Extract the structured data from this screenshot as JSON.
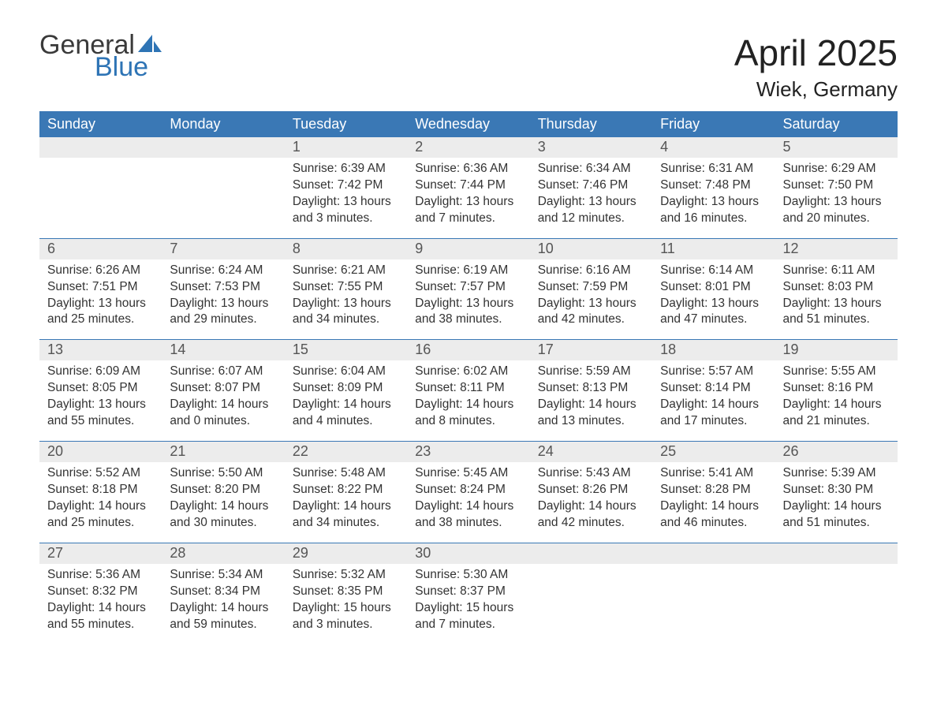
{
  "logo": {
    "word1": "General",
    "word2": "Blue",
    "word1_color": "#3a3a3a",
    "word2_color": "#2e74b5",
    "shape_color": "#2e74b5"
  },
  "title": "April 2025",
  "location": "Wiek, Germany",
  "colors": {
    "header_bg": "#3a78b5",
    "header_text": "#ffffff",
    "daynum_bg": "#ececec",
    "daynum_text": "#555555",
    "body_text": "#333333",
    "week_divider": "#3a78b5",
    "page_bg": "#ffffff"
  },
  "typography": {
    "title_fontsize": 46,
    "location_fontsize": 26,
    "header_fontsize": 18,
    "daynum_fontsize": 18,
    "body_fontsize": 15.5
  },
  "days_of_week": [
    "Sunday",
    "Monday",
    "Tuesday",
    "Wednesday",
    "Thursday",
    "Friday",
    "Saturday"
  ],
  "weeks": [
    [
      {
        "empty": true
      },
      {
        "empty": true
      },
      {
        "day": "1",
        "sunrise": "Sunrise: 6:39 AM",
        "sunset": "Sunset: 7:42 PM",
        "daylight1": "Daylight: 13 hours",
        "daylight2": "and 3 minutes."
      },
      {
        "day": "2",
        "sunrise": "Sunrise: 6:36 AM",
        "sunset": "Sunset: 7:44 PM",
        "daylight1": "Daylight: 13 hours",
        "daylight2": "and 7 minutes."
      },
      {
        "day": "3",
        "sunrise": "Sunrise: 6:34 AM",
        "sunset": "Sunset: 7:46 PM",
        "daylight1": "Daylight: 13 hours",
        "daylight2": "and 12 minutes."
      },
      {
        "day": "4",
        "sunrise": "Sunrise: 6:31 AM",
        "sunset": "Sunset: 7:48 PM",
        "daylight1": "Daylight: 13 hours",
        "daylight2": "and 16 minutes."
      },
      {
        "day": "5",
        "sunrise": "Sunrise: 6:29 AM",
        "sunset": "Sunset: 7:50 PM",
        "daylight1": "Daylight: 13 hours",
        "daylight2": "and 20 minutes."
      }
    ],
    [
      {
        "day": "6",
        "sunrise": "Sunrise: 6:26 AM",
        "sunset": "Sunset: 7:51 PM",
        "daylight1": "Daylight: 13 hours",
        "daylight2": "and 25 minutes."
      },
      {
        "day": "7",
        "sunrise": "Sunrise: 6:24 AM",
        "sunset": "Sunset: 7:53 PM",
        "daylight1": "Daylight: 13 hours",
        "daylight2": "and 29 minutes."
      },
      {
        "day": "8",
        "sunrise": "Sunrise: 6:21 AM",
        "sunset": "Sunset: 7:55 PM",
        "daylight1": "Daylight: 13 hours",
        "daylight2": "and 34 minutes."
      },
      {
        "day": "9",
        "sunrise": "Sunrise: 6:19 AM",
        "sunset": "Sunset: 7:57 PM",
        "daylight1": "Daylight: 13 hours",
        "daylight2": "and 38 minutes."
      },
      {
        "day": "10",
        "sunrise": "Sunrise: 6:16 AM",
        "sunset": "Sunset: 7:59 PM",
        "daylight1": "Daylight: 13 hours",
        "daylight2": "and 42 minutes."
      },
      {
        "day": "11",
        "sunrise": "Sunrise: 6:14 AM",
        "sunset": "Sunset: 8:01 PM",
        "daylight1": "Daylight: 13 hours",
        "daylight2": "and 47 minutes."
      },
      {
        "day": "12",
        "sunrise": "Sunrise: 6:11 AM",
        "sunset": "Sunset: 8:03 PM",
        "daylight1": "Daylight: 13 hours",
        "daylight2": "and 51 minutes."
      }
    ],
    [
      {
        "day": "13",
        "sunrise": "Sunrise: 6:09 AM",
        "sunset": "Sunset: 8:05 PM",
        "daylight1": "Daylight: 13 hours",
        "daylight2": "and 55 minutes."
      },
      {
        "day": "14",
        "sunrise": "Sunrise: 6:07 AM",
        "sunset": "Sunset: 8:07 PM",
        "daylight1": "Daylight: 14 hours",
        "daylight2": "and 0 minutes."
      },
      {
        "day": "15",
        "sunrise": "Sunrise: 6:04 AM",
        "sunset": "Sunset: 8:09 PM",
        "daylight1": "Daylight: 14 hours",
        "daylight2": "and 4 minutes."
      },
      {
        "day": "16",
        "sunrise": "Sunrise: 6:02 AM",
        "sunset": "Sunset: 8:11 PM",
        "daylight1": "Daylight: 14 hours",
        "daylight2": "and 8 minutes."
      },
      {
        "day": "17",
        "sunrise": "Sunrise: 5:59 AM",
        "sunset": "Sunset: 8:13 PM",
        "daylight1": "Daylight: 14 hours",
        "daylight2": "and 13 minutes."
      },
      {
        "day": "18",
        "sunrise": "Sunrise: 5:57 AM",
        "sunset": "Sunset: 8:14 PM",
        "daylight1": "Daylight: 14 hours",
        "daylight2": "and 17 minutes."
      },
      {
        "day": "19",
        "sunrise": "Sunrise: 5:55 AM",
        "sunset": "Sunset: 8:16 PM",
        "daylight1": "Daylight: 14 hours",
        "daylight2": "and 21 minutes."
      }
    ],
    [
      {
        "day": "20",
        "sunrise": "Sunrise: 5:52 AM",
        "sunset": "Sunset: 8:18 PM",
        "daylight1": "Daylight: 14 hours",
        "daylight2": "and 25 minutes."
      },
      {
        "day": "21",
        "sunrise": "Sunrise: 5:50 AM",
        "sunset": "Sunset: 8:20 PM",
        "daylight1": "Daylight: 14 hours",
        "daylight2": "and 30 minutes."
      },
      {
        "day": "22",
        "sunrise": "Sunrise: 5:48 AM",
        "sunset": "Sunset: 8:22 PM",
        "daylight1": "Daylight: 14 hours",
        "daylight2": "and 34 minutes."
      },
      {
        "day": "23",
        "sunrise": "Sunrise: 5:45 AM",
        "sunset": "Sunset: 8:24 PM",
        "daylight1": "Daylight: 14 hours",
        "daylight2": "and 38 minutes."
      },
      {
        "day": "24",
        "sunrise": "Sunrise: 5:43 AM",
        "sunset": "Sunset: 8:26 PM",
        "daylight1": "Daylight: 14 hours",
        "daylight2": "and 42 minutes."
      },
      {
        "day": "25",
        "sunrise": "Sunrise: 5:41 AM",
        "sunset": "Sunset: 8:28 PM",
        "daylight1": "Daylight: 14 hours",
        "daylight2": "and 46 minutes."
      },
      {
        "day": "26",
        "sunrise": "Sunrise: 5:39 AM",
        "sunset": "Sunset: 8:30 PM",
        "daylight1": "Daylight: 14 hours",
        "daylight2": "and 51 minutes."
      }
    ],
    [
      {
        "day": "27",
        "sunrise": "Sunrise: 5:36 AM",
        "sunset": "Sunset: 8:32 PM",
        "daylight1": "Daylight: 14 hours",
        "daylight2": "and 55 minutes."
      },
      {
        "day": "28",
        "sunrise": "Sunrise: 5:34 AM",
        "sunset": "Sunset: 8:34 PM",
        "daylight1": "Daylight: 14 hours",
        "daylight2": "and 59 minutes."
      },
      {
        "day": "29",
        "sunrise": "Sunrise: 5:32 AM",
        "sunset": "Sunset: 8:35 PM",
        "daylight1": "Daylight: 15 hours",
        "daylight2": "and 3 minutes."
      },
      {
        "day": "30",
        "sunrise": "Sunrise: 5:30 AM",
        "sunset": "Sunset: 8:37 PM",
        "daylight1": "Daylight: 15 hours",
        "daylight2": "and 7 minutes."
      },
      {
        "empty": true
      },
      {
        "empty": true
      },
      {
        "empty": true
      }
    ]
  ]
}
